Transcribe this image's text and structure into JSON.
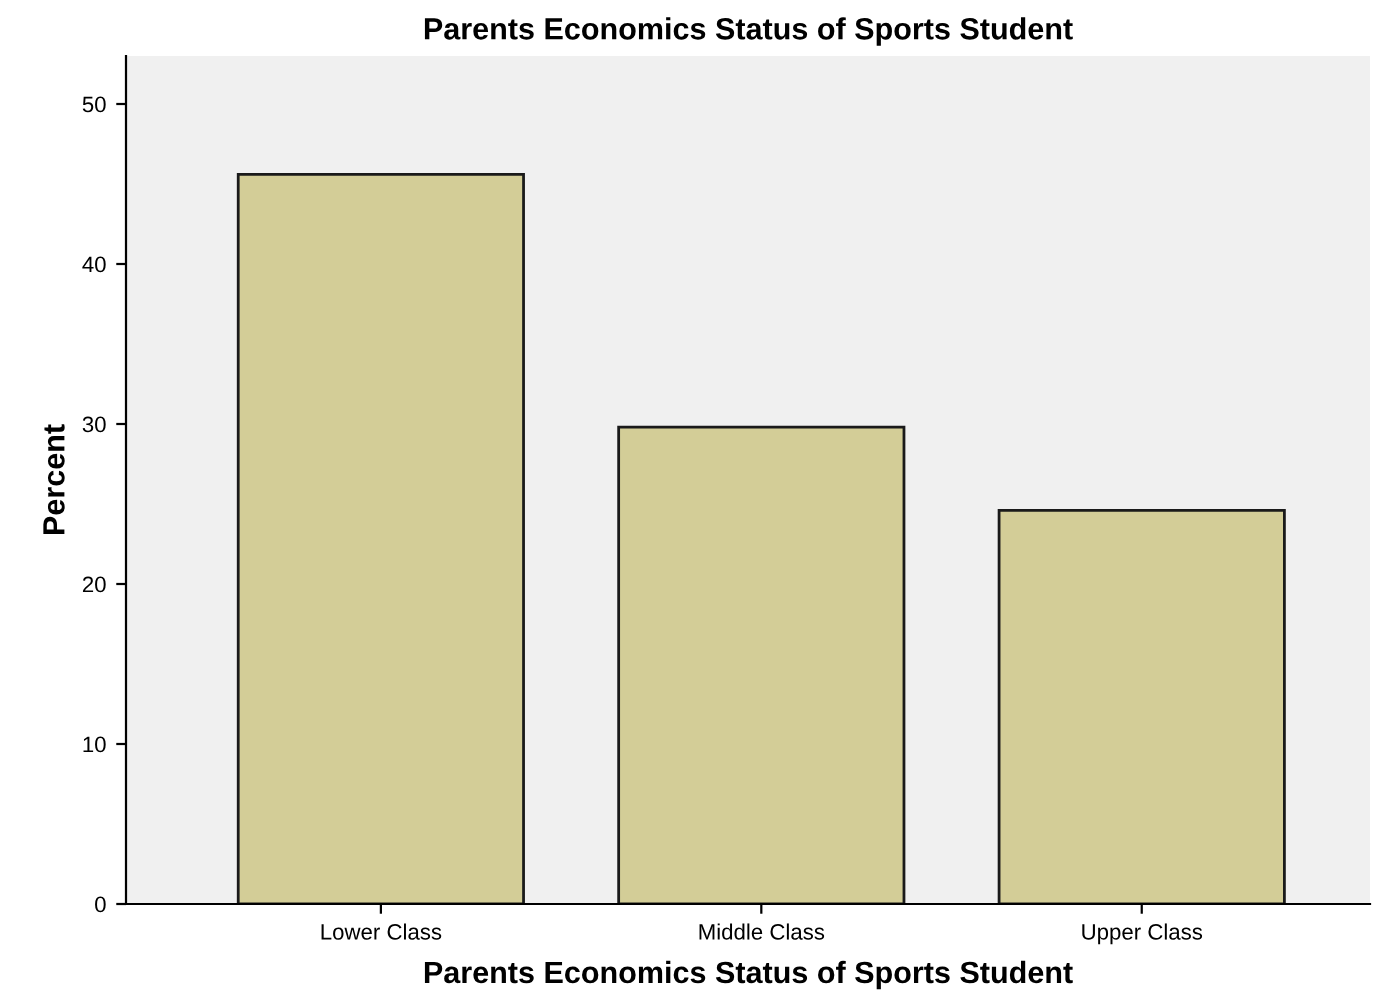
{
  "chart_data": {
    "type": "bar",
    "title": "Parents Economics Status of Sports Student",
    "xlabel": "Parents Economics Status of Sports Student",
    "ylabel": "Percent",
    "categories": [
      "Lower Class",
      "Middle Class",
      "Upper Class"
    ],
    "values": [
      45.6,
      29.8,
      24.6
    ],
    "color": "#d3cd97",
    "ylim": [
      0,
      53
    ],
    "yticks": [
      0,
      10,
      20,
      30,
      40,
      50
    ],
    "grid": false
  }
}
